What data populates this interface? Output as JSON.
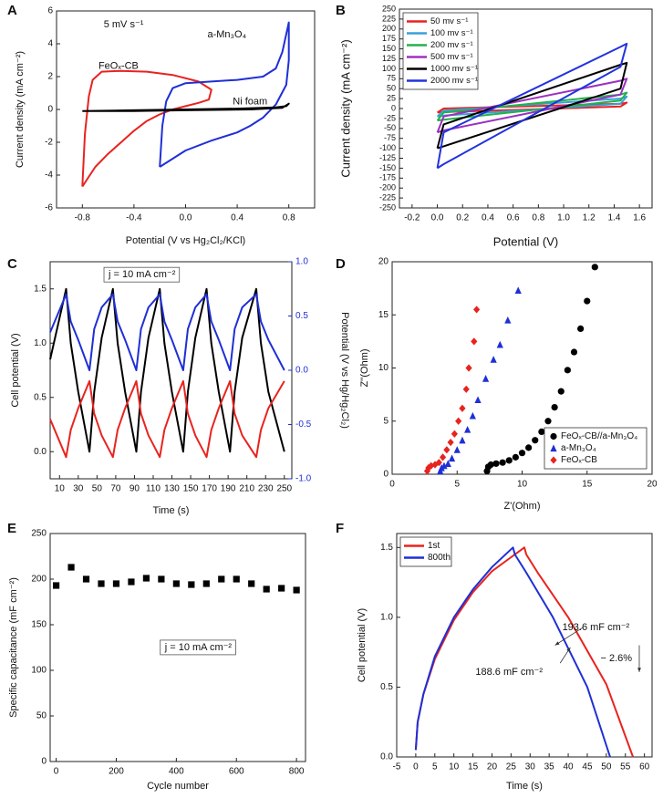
{
  "chart_data": [
    {
      "type": "line",
      "panel": "A",
      "xlabel": "Potential (V vs Hg₂Cl₂/KCl)",
      "ylabel": "Current density (mA cm⁻²)",
      "xlim": [
        -1.0,
        1.0
      ],
      "xticks": [
        -0.8,
        -0.4,
        {
          "value": 0,
          "label": "0.0"
        },
        0.4,
        0.8
      ],
      "ylim": [
        -6,
        6
      ],
      "yticks": [
        -6,
        -4,
        -2,
        0,
        2,
        4,
        6
      ],
      "annotations": [
        "5 mV s⁻¹"
      ],
      "series": [
        {
          "name": "FeOₓ-CB",
          "color": "#e8231f",
          "x": [
            -0.8,
            -0.78,
            -0.75,
            -0.72,
            -0.65,
            -0.5,
            -0.3,
            -0.1,
            0.1,
            0.2,
            0.18,
            0.1,
            0.0,
            -0.1,
            -0.2,
            -0.3,
            -0.4,
            -0.5,
            -0.6,
            -0.7,
            -0.8
          ],
          "values": [
            -4.7,
            -1.5,
            0.8,
            1.8,
            2.3,
            2.35,
            2.3,
            2.1,
            1.7,
            1.2,
            0.6,
            0.4,
            0.2,
            0.0,
            -0.3,
            -0.7,
            -1.3,
            -2.0,
            -2.7,
            -3.5,
            -4.7
          ]
        },
        {
          "name": "a-Mn₃O₄",
          "color": "#1f2fd6",
          "x": [
            -0.2,
            -0.18,
            -0.15,
            -0.1,
            0.0,
            0.2,
            0.4,
            0.6,
            0.7,
            0.75,
            0.8,
            0.8,
            0.78,
            0.7,
            0.6,
            0.5,
            0.4,
            0.2,
            0.0,
            -0.2
          ],
          "values": [
            -3.5,
            -1.0,
            0.5,
            1.3,
            1.6,
            1.7,
            1.8,
            2.0,
            2.5,
            3.5,
            5.3,
            3.0,
            1.5,
            0.3,
            -0.5,
            -1.0,
            -1.4,
            -1.9,
            -2.5,
            -3.5
          ]
        },
        {
          "name": "Ni foam",
          "color": "#000000",
          "x": [
            -0.8,
            -0.4,
            0.0,
            0.4,
            0.7,
            0.78,
            0.8,
            0.75,
            0.5,
            0.0,
            -0.4,
            -0.8
          ],
          "values": [
            -0.1,
            -0.05,
            0.0,
            0.05,
            0.12,
            0.2,
            0.35,
            0.1,
            0.0,
            -0.05,
            -0.1,
            -0.1
          ]
        }
      ]
    },
    {
      "type": "line",
      "panel": "B",
      "xlabel": "Potential (V)",
      "ylabel": "Current density (mA cm⁻²)",
      "legend": "upper left",
      "xlim": [
        -0.3,
        1.7
      ],
      "xticks": [
        -0.2,
        {
          "value": 0,
          "label": "0.0"
        },
        0.2,
        0.4,
        0.6,
        0.8,
        {
          "value": 1,
          "label": "1.0"
        },
        1.2,
        1.4,
        1.6
      ],
      "ylim": [
        -250,
        250
      ],
      "yticks": [
        -250,
        -225,
        -200,
        -175,
        -150,
        -125,
        -100,
        -75,
        -50,
        -25,
        0,
        25,
        50,
        75,
        100,
        125,
        150,
        175,
        200,
        225,
        250
      ],
      "series": [
        {
          "name": "50 mv s⁻¹",
          "color": "#e8231f",
          "x": [
            0,
            0.05,
            1.45,
            1.5,
            1.45,
            0.05,
            0
          ],
          "values": [
            -10,
            0,
            12,
            15,
            5,
            -9,
            -10
          ]
        },
        {
          "name": "100 mv s⁻¹",
          "color": "#3aa0d8",
          "x": [
            0,
            0.05,
            1.45,
            1.5,
            1.45,
            0.05,
            0
          ],
          "values": [
            -20,
            -5,
            25,
            30,
            12,
            -18,
            -20
          ]
        },
        {
          "name": "200 mv s⁻¹",
          "color": "#22b24c",
          "x": [
            0,
            0.05,
            1.45,
            1.5,
            1.45,
            0.05,
            0
          ],
          "values": [
            -30,
            -10,
            35,
            40,
            20,
            -28,
            -30
          ]
        },
        {
          "name": "500 mv s⁻¹",
          "color": "#9b30c0",
          "x": [
            0,
            0.05,
            1.45,
            1.5,
            1.45,
            0.05,
            0
          ],
          "values": [
            -60,
            -20,
            70,
            75,
            35,
            -55,
            -60
          ]
        },
        {
          "name": "1000 mv s⁻¹",
          "color": "#000000",
          "x": [
            0,
            0.05,
            1.45,
            1.5,
            1.45,
            0.05,
            0
          ],
          "values": [
            -100,
            -40,
            110,
            115,
            50,
            -95,
            -100
          ]
        },
        {
          "name": "2000 mv s⁻¹",
          "color": "#2233dd",
          "x": [
            0,
            0.05,
            1.45,
            1.5,
            1.45,
            0.05,
            0
          ],
          "values": [
            -150,
            -60,
            155,
            163,
            105,
            -140,
            -150
          ]
        }
      ]
    },
    {
      "type": "line",
      "panel": "C",
      "xlabel": "Time (s)",
      "ylabel": "Cell potential (V)",
      "y2label": "Potential (V vs Hg/Hg₂Cl₂)",
      "y2color": "#1f2fd6",
      "xlim": [
        0,
        258
      ],
      "xticks": [
        10,
        30,
        50,
        70,
        90,
        110,
        130,
        150,
        170,
        190,
        210,
        230,
        250
      ],
      "ylim": [
        -0.25,
        1.75
      ],
      "yticks": [
        {
          "value": 0,
          "label": "0.0"
        },
        0.5,
        {
          "value": 1,
          "label": "1.0"
        },
        1.5
      ],
      "y2lim": [
        -1.0,
        1.0
      ],
      "y2ticks": [
        {
          "value": -1,
          "label": "-1.0"
        },
        -0.5,
        {
          "value": 0,
          "label": "0.0"
        },
        0.5,
        {
          "value": 1,
          "label": "1.0"
        }
      ],
      "annotations": [
        "j = 10 mA cm⁻²"
      ],
      "series": [
        {
          "color": "#000000",
          "x": [
            0,
            17,
            22,
            30,
            42,
            47,
            55,
            67,
            72,
            80,
            92,
            97,
            105,
            117,
            122,
            130,
            142,
            147,
            155,
            167,
            172,
            180,
            192,
            197,
            205,
            220,
            225,
            233,
            250
          ],
          "values": [
            0.85,
            1.5,
            1.0,
            0.55,
            0,
            0.55,
            1.05,
            1.5,
            1.0,
            0.55,
            0,
            0.55,
            1.05,
            1.5,
            1.0,
            0.55,
            0,
            0.55,
            1.05,
            1.5,
            1.0,
            0.55,
            0,
            0.55,
            1.05,
            1.5,
            1.0,
            0.55,
            0
          ]
        },
        {
          "color": "#1f2fd6",
          "axis": "y2",
          "x": [
            0,
            17,
            22,
            30,
            42,
            47,
            55,
            67,
            72,
            80,
            92,
            97,
            105,
            117,
            122,
            130,
            142,
            147,
            155,
            167,
            172,
            180,
            192,
            197,
            205,
            220,
            225,
            233,
            250
          ],
          "values": [
            0.35,
            0.7,
            0.45,
            0.28,
            0.0,
            0.38,
            0.58,
            0.7,
            0.45,
            0.28,
            0.0,
            0.38,
            0.58,
            0.7,
            0.45,
            0.28,
            0.0,
            0.38,
            0.58,
            0.7,
            0.45,
            0.28,
            0.0,
            0.38,
            0.58,
            0.7,
            0.45,
            0.28,
            0.0
          ]
        },
        {
          "color": "#e8231f",
          "axis": "y2",
          "x": [
            0,
            17,
            22,
            30,
            42,
            47,
            55,
            67,
            72,
            80,
            92,
            97,
            105,
            117,
            122,
            130,
            142,
            147,
            155,
            167,
            172,
            180,
            192,
            197,
            205,
            220,
            225,
            233,
            250
          ],
          "values": [
            -0.45,
            -0.8,
            -0.55,
            -0.35,
            -0.1,
            -0.4,
            -0.6,
            -0.8,
            -0.55,
            -0.35,
            -0.1,
            -0.4,
            -0.6,
            -0.8,
            -0.55,
            -0.35,
            -0.1,
            -0.4,
            -0.6,
            -0.8,
            -0.55,
            -0.35,
            -0.1,
            -0.4,
            -0.6,
            -0.8,
            -0.55,
            -0.35,
            -0.1
          ]
        }
      ]
    },
    {
      "type": "scatter",
      "panel": "D",
      "xlabel": "Z'(Ohm)",
      "ylabel": "Z''(Ohm)",
      "legend": "lower right",
      "xlim": [
        0,
        20
      ],
      "xticks": [
        0,
        5,
        10,
        15,
        20
      ],
      "ylim": [
        0,
        20
      ],
      "yticks": [
        0,
        5,
        10,
        15,
        20
      ],
      "series": [
        {
          "name": "FeOₓ-CB//a-Mn₃O₄",
          "color": "#000000",
          "marker": "circle",
          "x": [
            7.3,
            7.4,
            7.6,
            8,
            8.5,
            9,
            9.5,
            10,
            10.5,
            11,
            11.5,
            12,
            12.5,
            13,
            13.5,
            14,
            14.5,
            15,
            15.6
          ],
          "values": [
            0.3,
            0.7,
            0.9,
            1.0,
            1.1,
            1.3,
            1.6,
            2.0,
            2.5,
            3.2,
            4.0,
            5.0,
            6.3,
            7.8,
            9.8,
            11.5,
            13.7,
            16.3,
            19.5
          ]
        },
        {
          "name": "a-Mn₃O₄",
          "color": "#1f2fd6",
          "marker": "triangle",
          "x": [
            3.7,
            3.8,
            4.0,
            4.3,
            4.6,
            5.0,
            5.4,
            5.8,
            6.2,
            6.6,
            7.2,
            7.8,
            8.3,
            8.9,
            9.7
          ],
          "values": [
            0.3,
            0.6,
            0.8,
            1.0,
            1.5,
            2.3,
            3.2,
            4.2,
            5.5,
            7.0,
            9.0,
            10.8,
            12.2,
            14.5,
            17.3
          ]
        },
        {
          "name": "FeOₓ-CB",
          "color": "#e8231f",
          "marker": "diamond",
          "x": [
            2.7,
            2.8,
            3.0,
            3.3,
            3.6,
            3.9,
            4.2,
            4.5,
            4.8,
            5.1,
            5.4,
            5.7,
            5.9,
            6.3,
            6.5
          ],
          "values": [
            0.3,
            0.6,
            0.8,
            0.9,
            1.1,
            1.6,
            2.3,
            3.0,
            3.8,
            5.0,
            6.2,
            8.0,
            10.0,
            12.5,
            15.5
          ]
        }
      ]
    },
    {
      "type": "scatter",
      "panel": "E",
      "xlabel": "Cycle number",
      "ylabel": "Specific capacitance (mF cm⁻²)",
      "color": "#000000",
      "marker": "square",
      "xlim": [
        -20,
        830
      ],
      "xticks": [
        0,
        200,
        400,
        600,
        800
      ],
      "ylim": [
        0,
        250
      ],
      "yticks": [
        0,
        50,
        100,
        150,
        200,
        250
      ],
      "annotations": [
        "j = 10 mA cm⁻²"
      ],
      "x": [
        0,
        50,
        100,
        150,
        200,
        250,
        300,
        350,
        400,
        450,
        500,
        550,
        600,
        650,
        700,
        750,
        800
      ],
      "values": [
        193,
        213,
        200,
        195,
        195,
        197,
        201,
        200,
        195,
        194,
        195,
        200,
        200,
        195,
        189,
        190,
        188
      ]
    },
    {
      "type": "line",
      "panel": "F",
      "xlabel": "Time (s)",
      "ylabel": "Cell potential (V)",
      "legend": "upper left",
      "xlim": [
        -5,
        62
      ],
      "xticks": [
        -5,
        0,
        5,
        10,
        15,
        20,
        25,
        30,
        35,
        40,
        45,
        50,
        55,
        60
      ],
      "ylim": [
        0,
        1.6
      ],
      "yticks": [
        {
          "value": 0,
          "label": "0.0"
        },
        0.5,
        {
          "value": 1,
          "label": "1.0"
        },
        1.5
      ],
      "annotations": [
        "193.6 mF cm⁻²",
        "188.6 mF cm⁻²",
        "− 2.6%"
      ],
      "series": [
        {
          "name": "1st",
          "color": "#e8231f",
          "x": [
            0,
            0.5,
            2,
            5,
            10,
            15,
            20,
            25,
            28.5,
            29,
            32,
            40,
            50,
            57
          ],
          "values": [
            0.05,
            0.25,
            0.45,
            0.7,
            0.98,
            1.18,
            1.33,
            1.43,
            1.5,
            1.45,
            1.32,
            1.0,
            0.52,
            0.0
          ]
        },
        {
          "name": "800th",
          "color": "#1f2fd6",
          "x": [
            0,
            0.5,
            2,
            5,
            10,
            15,
            20,
            25.5,
            26,
            29,
            36,
            45,
            51
          ],
          "values": [
            0.05,
            0.25,
            0.45,
            0.72,
            1.0,
            1.2,
            1.36,
            1.5,
            1.45,
            1.32,
            1.0,
            0.5,
            0.0
          ]
        }
      ]
    }
  ]
}
